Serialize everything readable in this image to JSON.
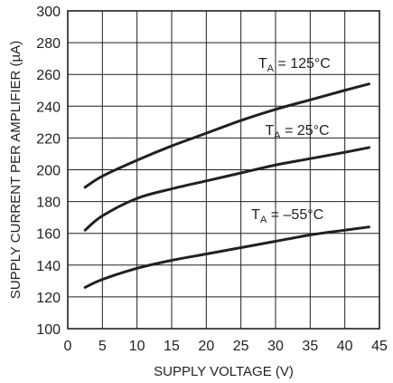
{
  "chart_data": {
    "type": "line",
    "xlabel": "SUPPLY VOLTAGE (V)",
    "ylabel": "SUPPLY CURRENT PER AMPLIFIER (µA)",
    "xlim": [
      0,
      45
    ],
    "ylim": [
      100,
      300
    ],
    "xticks": [
      0,
      5,
      10,
      15,
      20,
      25,
      30,
      35,
      40,
      45
    ],
    "yticks": [
      100,
      120,
      140,
      160,
      180,
      200,
      220,
      240,
      260,
      280,
      300
    ],
    "grid": true,
    "series": [
      {
        "label_main": "T",
        "label_sub": "A",
        "label_rest": " = 125°C",
        "x": [
          2.5,
          5,
          10,
          15,
          20,
          25,
          30,
          35,
          40,
          43.5
        ],
        "y": [
          189,
          196,
          206,
          215,
          223,
          231,
          238,
          244,
          250,
          254
        ]
      },
      {
        "label_main": "T",
        "label_sub": "A",
        "label_rest": " = 25°C",
        "x": [
          2.5,
          5,
          10,
          15,
          20,
          25,
          30,
          35,
          40,
          43.5
        ],
        "y": [
          162,
          171,
          182,
          188,
          193,
          198,
          203,
          207,
          211,
          214
        ]
      },
      {
        "label_main": "T",
        "label_sub": "A",
        "label_rest": " = –55°C",
        "x": [
          2.5,
          5,
          10,
          15,
          20,
          25,
          30,
          35,
          40,
          43.5
        ],
        "y": [
          126,
          131,
          138,
          143,
          147,
          151,
          155,
          159,
          162,
          164
        ]
      }
    ]
  }
}
